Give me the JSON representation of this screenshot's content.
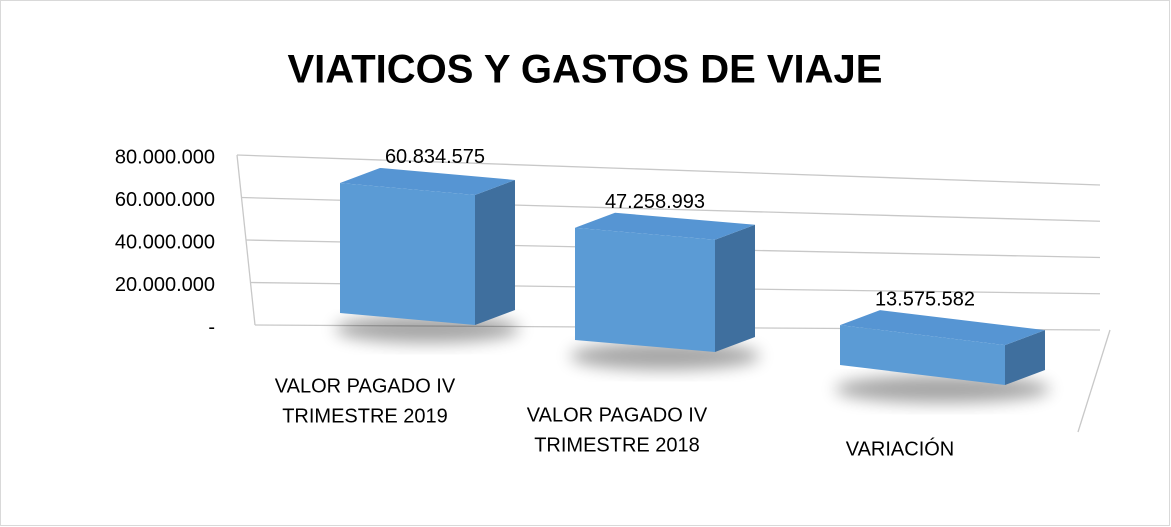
{
  "chart_data": {
    "type": "bar3d",
    "title": "VIATICOS Y GASTOS DE VIAJE",
    "categories": [
      [
        "VALOR PAGADO  IV",
        "TRIMESTRE  2019"
      ],
      [
        "VALOR PAGADO IV",
        "TRIMESTRE 2018"
      ],
      [
        "VARIACIÓN"
      ]
    ],
    "values": [
      60834575,
      47258993,
      13575582
    ],
    "value_labels": [
      "60.834.575",
      "47.258.993",
      "13.575.582"
    ],
    "color": "#5b9bd5",
    "ylim": [
      0,
      80000000
    ],
    "yticks": [
      {
        "value": 0,
        "label": "-"
      },
      {
        "value": 20000000,
        "label": "20.000.000"
      },
      {
        "value": 40000000,
        "label": "40.000.000"
      },
      {
        "value": 60000000,
        "label": "60.000.000"
      },
      {
        "value": 80000000,
        "label": "80.000.000"
      }
    ],
    "grid": true
  }
}
